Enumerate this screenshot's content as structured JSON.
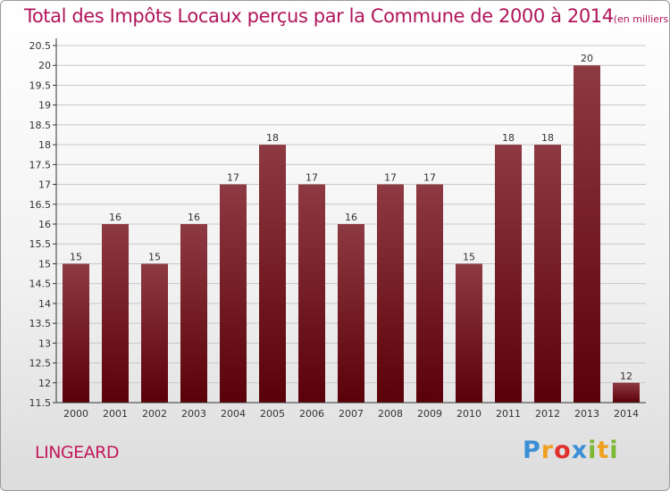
{
  "title": "Total des Impôts Locaux perçus par la Commune de 2000 à 2014",
  "unit_note": "(en milliers d'€)",
  "commune": "LINGEARD",
  "logo": {
    "text": "Proxiti",
    "letters": [
      "P",
      "r",
      "o",
      "x",
      "i",
      "t",
      "i"
    ],
    "colors": [
      "#3a8fd6",
      "#f0a020",
      "#e03030",
      "#3a8fd6",
      "#7cb832",
      "#f0a020",
      "#7cb832"
    ]
  },
  "colors": {
    "bar_top": "#8e3a42",
    "bar_bottom": "#5a0008",
    "title": "#b0155a",
    "axis": "#333333",
    "grid": "#c8c8c8"
  },
  "chart_data": {
    "type": "bar",
    "title": "Total des Impôts Locaux perçus par la Commune de 2000 à 2014",
    "xlabel": "",
    "ylabel": "en milliers d'€",
    "categories": [
      "2000",
      "2001",
      "2002",
      "2003",
      "2004",
      "2005",
      "2006",
      "2007",
      "2008",
      "2009",
      "2010",
      "2011",
      "2012",
      "2013",
      "2014"
    ],
    "values": [
      15,
      16,
      15,
      16,
      17,
      18,
      17,
      16,
      17,
      17,
      15,
      18,
      18,
      20,
      12
    ],
    "value_labels": [
      "15",
      "16",
      "15",
      "16",
      "17",
      "18",
      "17",
      "16",
      "17",
      "17",
      "15",
      "18",
      "18",
      "20",
      "12"
    ],
    "ylim": [
      11.5,
      20.5
    ],
    "yticks": [
      "11.5",
      "12",
      "12.5",
      "13",
      "13.5",
      "14",
      "14.5",
      "15",
      "15.5",
      "16",
      "16.5",
      "17",
      "17.5",
      "18",
      "18.5",
      "19",
      "19.5",
      "20",
      "20.5"
    ],
    "grid": true
  }
}
